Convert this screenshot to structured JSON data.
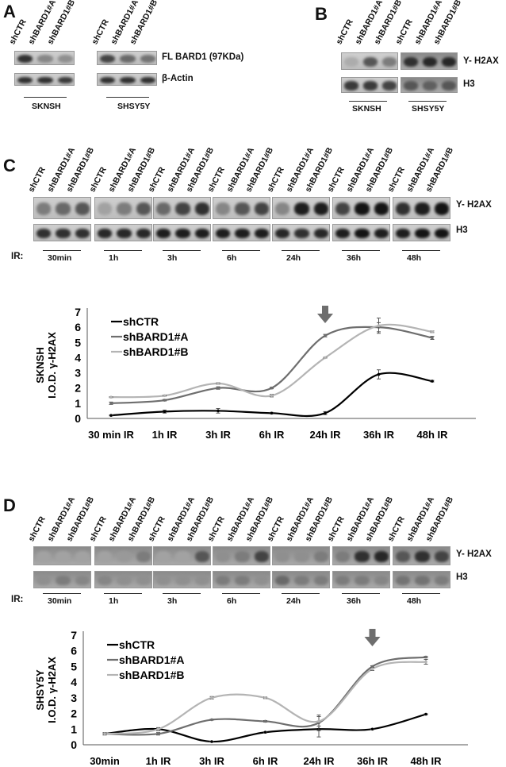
{
  "panels": {
    "a": "A",
    "b": "B",
    "c": "C",
    "d": "D"
  },
  "lanes": [
    "shCTR",
    "shBARD1#A",
    "shBARD1#B"
  ],
  "panelA": {
    "rows": [
      "FL BARD1 (97KDa)",
      "β-Actin"
    ],
    "cells": [
      "SKNSH",
      "SHSY5Y"
    ],
    "intensity": [
      [
        [
          0.8,
          0.35,
          0.3
        ],
        [
          0.7,
          0.5,
          0.45
        ]
      ],
      [
        [
          0.8,
          0.8,
          0.75
        ],
        [
          0.8,
          0.8,
          0.8
        ]
      ]
    ]
  },
  "panelB": {
    "rows": [
      "Y- H2AX",
      "H3"
    ],
    "cells": [
      "SKNSH",
      "SHSY5Y"
    ],
    "intensity": [
      [
        [
          0.15,
          0.6,
          0.4
        ],
        [
          0.8,
          0.85,
          0.85
        ]
      ],
      [
        [
          0.75,
          0.75,
          0.7
        ],
        [
          0.6,
          0.55,
          0.6
        ]
      ]
    ]
  },
  "panelC": {
    "ir_label": "IR:",
    "rows": [
      "Y- H2AX",
      "H3"
    ],
    "timepoints": [
      "30min",
      "1h",
      "3h",
      "6h",
      "24h",
      "36h",
      "48h"
    ],
    "intensity": [
      [
        [
          0.4,
          0.5,
          0.6
        ],
        [
          0.2,
          0.4,
          0.6
        ],
        [
          0.5,
          0.7,
          0.8
        ],
        [
          0.35,
          0.6,
          0.7
        ],
        [
          0.35,
          0.9,
          0.9
        ],
        [
          0.7,
          0.95,
          0.95
        ],
        [
          0.8,
          0.9,
          0.95
        ]
      ],
      [
        [
          0.8,
          0.8,
          0.8
        ],
        [
          0.85,
          0.85,
          0.85
        ],
        [
          0.9,
          0.9,
          0.9
        ],
        [
          0.9,
          0.9,
          0.9
        ],
        [
          0.85,
          0.8,
          0.85
        ],
        [
          0.9,
          0.95,
          0.9
        ],
        [
          0.9,
          0.95,
          0.95
        ]
      ]
    ]
  },
  "panelD": {
    "ir_label": "IR:",
    "rows": [
      "Y- H2AX",
      "H3"
    ],
    "timepoints": [
      "30min",
      "1h",
      "3h",
      "6h",
      "24h",
      "36h",
      "48h"
    ],
    "intensity": [
      [
        [
          0.2,
          0.2,
          0.2
        ],
        [
          0.2,
          0.25,
          0.4
        ],
        [
          0.2,
          0.2,
          0.6
        ],
        [
          0.3,
          0.4,
          0.7
        ],
        [
          0.3,
          0.3,
          0.4
        ],
        [
          0.4,
          0.8,
          0.85
        ],
        [
          0.6,
          0.8,
          0.7
        ]
      ],
      [
        [
          0.3,
          0.4,
          0.35
        ],
        [
          0.35,
          0.3,
          0.3
        ],
        [
          0.3,
          0.3,
          0.3
        ],
        [
          0.4,
          0.4,
          0.3
        ],
        [
          0.5,
          0.4,
          0.4
        ],
        [
          0.4,
          0.4,
          0.35
        ],
        [
          0.45,
          0.45,
          0.4
        ]
      ]
    ]
  },
  "chart_data": [
    {
      "type": "line",
      "ylabel": "SKNSH\nI.O.D. γ-H2AX",
      "ylabel_lines": [
        "SKNSH",
        "I.O.D. γ-H2AX"
      ],
      "ylim": [
        0,
        7
      ],
      "yticks": [
        0,
        1,
        2,
        3,
        4,
        5,
        6,
        7
      ],
      "categories": [
        "30 min IR",
        "1h IR",
        "3h IR",
        "6h IR",
        "24h IR",
        "36h IR",
        "48h IR"
      ],
      "arrow_at": "24h IR",
      "legend": "top-left",
      "series": [
        {
          "name": "shCTR",
          "color": "#000000",
          "values": [
            0.2,
            0.45,
            0.5,
            0.35,
            0.35,
            2.9,
            2.45
          ],
          "error": [
            0.03,
            0.1,
            0.15,
            0.05,
            0.1,
            0.3,
            0.05
          ]
        },
        {
          "name": "shBARD1#A",
          "color": "#6e6e6e",
          "values": [
            1.0,
            1.2,
            2.0,
            2.0,
            5.45,
            6.0,
            5.3
          ],
          "error": [
            0.08,
            0.05,
            0.08,
            0.05,
            0.08,
            0.3,
            0.1
          ]
        },
        {
          "name": "shBARD1#B",
          "color": "#b4b4b4",
          "values": [
            1.4,
            1.5,
            2.3,
            1.5,
            4.0,
            6.1,
            5.7
          ],
          "error": [
            0.03,
            0.03,
            0.05,
            0.08,
            0.03,
            0.5,
            0.05
          ]
        }
      ]
    },
    {
      "type": "line",
      "ylabel_lines": [
        "SHSY5Y",
        "I.O.D. γ-H2AX"
      ],
      "ylim": [
        0,
        7
      ],
      "yticks": [
        0,
        1,
        2,
        3,
        4,
        5,
        6,
        7
      ],
      "categories": [
        "30min",
        "1h IR",
        "3h IR",
        "6h IR",
        "24h IR",
        "36h IR",
        "48h IR"
      ],
      "arrow_at": "36h IR",
      "legend": "top-left",
      "series": [
        {
          "name": "shCTR",
          "color": "#000000",
          "values": [
            0.7,
            1.0,
            0.2,
            0.8,
            1.0,
            1.0,
            1.95
          ],
          "error": [
            0.05,
            0.05,
            0.03,
            0.03,
            0.5,
            0.03,
            0.03
          ]
        },
        {
          "name": "shBARD1#A",
          "color": "#6e6e6e",
          "values": [
            0.7,
            0.7,
            1.6,
            1.5,
            1.4,
            5.0,
            5.6
          ],
          "error": [
            0.08,
            0.08,
            0.03,
            0.05,
            0.5,
            0.05,
            0.05
          ]
        },
        {
          "name": "shBARD1#B",
          "color": "#b4b4b4",
          "values": [
            0.7,
            1.0,
            3.0,
            3.0,
            1.5,
            4.85,
            5.3
          ],
          "error": [
            0.05,
            0.1,
            0.08,
            0.05,
            0.3,
            0.1,
            0.15
          ]
        }
      ]
    }
  ]
}
